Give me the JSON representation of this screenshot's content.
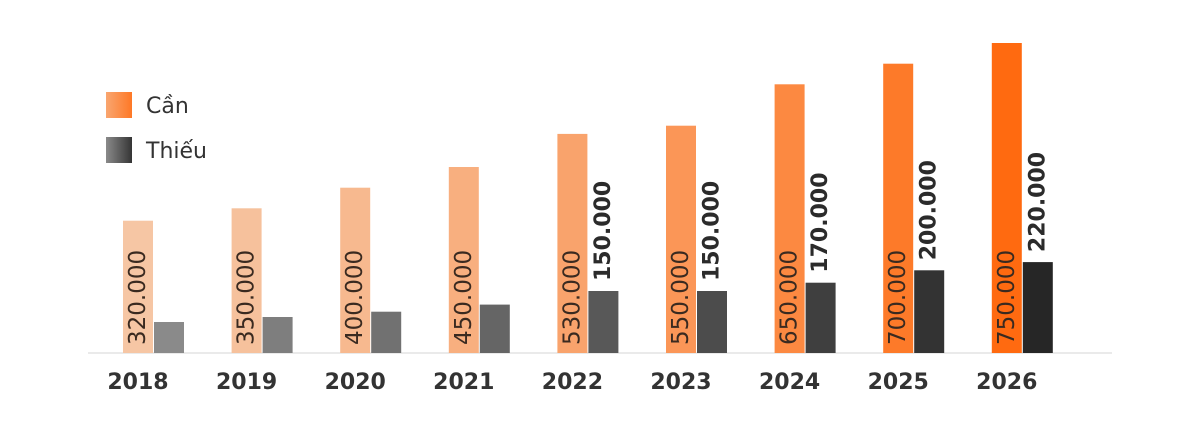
{
  "chart_data": {
    "type": "bar",
    "title": "",
    "xlabel": "",
    "ylabel": "",
    "ylim": [
      0,
      750000
    ],
    "grid": false,
    "legend_position": "top-left",
    "categories": [
      "2018",
      "2019",
      "2020",
      "2021",
      "2022",
      "2023",
      "2024",
      "2025",
      "2026"
    ],
    "series": [
      {
        "name": "Cần",
        "values": [
          320000,
          350000,
          400000,
          450000,
          530000,
          550000,
          650000,
          700000,
          750000
        ],
        "labels": [
          "320.000",
          "350.000",
          "400.000",
          "450.000",
          "530.000",
          "550.000",
          "650.000",
          "700.000",
          "750.000"
        ],
        "labeled": [
          true,
          true,
          true,
          true,
          true,
          true,
          true,
          true,
          true
        ],
        "color_start": "#f6c6a4",
        "color_end": "#ff6a10"
      },
      {
        "name": "Thiếu",
        "values": [
          75000,
          87000,
          100000,
          117000,
          150000,
          150000,
          170000,
          200000,
          220000
        ],
        "labels": [
          "",
          "",
          "",
          "",
          "150.000",
          "150.000",
          "170.000",
          "200.000",
          "220.000"
        ],
        "labeled": [
          false,
          false,
          false,
          false,
          true,
          true,
          true,
          true,
          true
        ],
        "color_start": "#8a8a8a",
        "color_end": "#262626"
      }
    ]
  }
}
